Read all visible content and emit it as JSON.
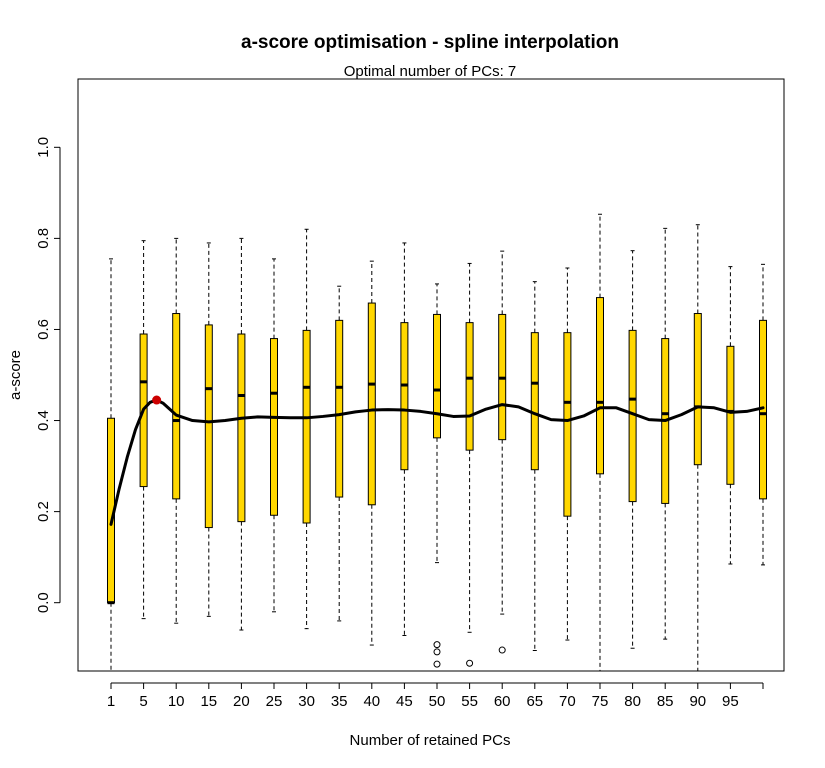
{
  "chart_data": {
    "type": "boxplot",
    "title": "a-score optimisation - spline interpolation",
    "subtitle": "Optimal number of PCs: 7",
    "xlabel": "Number of retained PCs",
    "ylabel": "a-score",
    "ylim": [
      -0.15,
      1.15
    ],
    "yticks": [
      0.0,
      0.2,
      0.4,
      0.6,
      0.8,
      1.0
    ],
    "ytick_labels": [
      "0.0",
      "0.2",
      "0.4",
      "0.6",
      "0.8",
      "1.0"
    ],
    "box_color": "#FFD700",
    "box_border_color": "#000000",
    "spline_color": "#000000",
    "optimum_color": "#CC0000",
    "optimum": {
      "x": 7,
      "y": 0.445
    },
    "categories": [
      1,
      5,
      10,
      15,
      20,
      25,
      30,
      35,
      40,
      45,
      50,
      55,
      60,
      65,
      70,
      75,
      80,
      85,
      90,
      95,
      100
    ],
    "category_labels": [
      "1",
      "5",
      "10",
      "15",
      "20",
      "25",
      "30",
      "35",
      "40",
      "45",
      "50",
      "55",
      "60",
      "65",
      "70",
      "75",
      "80",
      "85",
      "90",
      "95",
      ""
    ],
    "boxes": [
      {
        "x": 1,
        "lower_whisker": -0.15,
        "q1": 0.0,
        "median": 0.0,
        "q3": 0.405,
        "upper_whisker": 0.755,
        "outliers": []
      },
      {
        "x": 5,
        "lower_whisker": -0.035,
        "q1": 0.255,
        "median": 0.485,
        "q3": 0.59,
        "upper_whisker": 0.795,
        "outliers": []
      },
      {
        "x": 10,
        "lower_whisker": -0.045,
        "q1": 0.228,
        "median": 0.4,
        "q3": 0.635,
        "upper_whisker": 0.8,
        "outliers": []
      },
      {
        "x": 15,
        "lower_whisker": -0.03,
        "q1": 0.165,
        "median": 0.47,
        "q3": 0.61,
        "upper_whisker": 0.79,
        "outliers": []
      },
      {
        "x": 20,
        "lower_whisker": -0.06,
        "q1": 0.178,
        "median": 0.455,
        "q3": 0.59,
        "upper_whisker": 0.8,
        "outliers": []
      },
      {
        "x": 25,
        "lower_whisker": -0.02,
        "q1": 0.192,
        "median": 0.46,
        "q3": 0.58,
        "upper_whisker": 0.755,
        "outliers": []
      },
      {
        "x": 30,
        "lower_whisker": -0.057,
        "q1": 0.175,
        "median": 0.473,
        "q3": 0.598,
        "upper_whisker": 0.82,
        "outliers": []
      },
      {
        "x": 35,
        "lower_whisker": -0.04,
        "q1": 0.232,
        "median": 0.473,
        "q3": 0.62,
        "upper_whisker": 0.695,
        "outliers": []
      },
      {
        "x": 40,
        "lower_whisker": -0.093,
        "q1": 0.215,
        "median": 0.48,
        "q3": 0.658,
        "upper_whisker": 0.75,
        "outliers": []
      },
      {
        "x": 45,
        "lower_whisker": -0.072,
        "q1": 0.292,
        "median": 0.478,
        "q3": 0.615,
        "upper_whisker": 0.79,
        "outliers": []
      },
      {
        "x": 50,
        "lower_whisker": 0.088,
        "q1": 0.362,
        "median": 0.467,
        "q3": 0.633,
        "upper_whisker": 0.7,
        "outliers": [
          -0.092,
          -0.108,
          -0.135
        ]
      },
      {
        "x": 55,
        "lower_whisker": -0.065,
        "q1": 0.335,
        "median": 0.493,
        "q3": 0.615,
        "upper_whisker": 0.745,
        "outliers": [
          -0.133
        ]
      },
      {
        "x": 60,
        "lower_whisker": -0.025,
        "q1": 0.358,
        "median": 0.493,
        "q3": 0.633,
        "upper_whisker": 0.772,
        "outliers": [
          -0.104
        ]
      },
      {
        "x": 65,
        "lower_whisker": -0.105,
        "q1": 0.292,
        "median": 0.482,
        "q3": 0.593,
        "upper_whisker": 0.705,
        "outliers": []
      },
      {
        "x": 70,
        "lower_whisker": -0.082,
        "q1": 0.19,
        "median": 0.44,
        "q3": 0.593,
        "upper_whisker": 0.735,
        "outliers": []
      },
      {
        "x": 75,
        "lower_whisker": -0.15,
        "q1": 0.283,
        "median": 0.44,
        "q3": 0.67,
        "upper_whisker": 0.853,
        "outliers": []
      },
      {
        "x": 80,
        "lower_whisker": -0.1,
        "q1": 0.222,
        "median": 0.447,
        "q3": 0.598,
        "upper_whisker": 0.773,
        "outliers": []
      },
      {
        "x": 85,
        "lower_whisker": -0.08,
        "q1": 0.218,
        "median": 0.415,
        "q3": 0.58,
        "upper_whisker": 0.822,
        "outliers": []
      },
      {
        "x": 90,
        "lower_whisker": -0.15,
        "q1": 0.303,
        "median": 0.43,
        "q3": 0.635,
        "upper_whisker": 0.83,
        "outliers": []
      },
      {
        "x": 95,
        "lower_whisker": 0.085,
        "q1": 0.26,
        "median": 0.42,
        "q3": 0.563,
        "upper_whisker": 0.738,
        "outliers": []
      },
      {
        "x": 100,
        "lower_whisker": 0.083,
        "q1": 0.228,
        "median": 0.415,
        "q3": 0.62,
        "upper_whisker": 0.743,
        "outliers": []
      }
    ],
    "spline": {
      "x": [
        1,
        2,
        3,
        4,
        5,
        6,
        7,
        8,
        9,
        10,
        12.5,
        15,
        17.5,
        20,
        22.5,
        25,
        27.5,
        30,
        32.5,
        35,
        37.5,
        40,
        42.5,
        45,
        47.5,
        50,
        52.5,
        55,
        57.5,
        60,
        62.5,
        65,
        67.5,
        70,
        72.5,
        75,
        77.5,
        80,
        82.5,
        85,
        87.5,
        90,
        92.5,
        95,
        97.5,
        100
      ],
      "y": [
        0.172,
        0.25,
        0.32,
        0.38,
        0.425,
        0.44,
        0.445,
        0.438,
        0.425,
        0.412,
        0.4,
        0.397,
        0.4,
        0.405,
        0.408,
        0.407,
        0.406,
        0.406,
        0.409,
        0.413,
        0.419,
        0.423,
        0.424,
        0.423,
        0.42,
        0.415,
        0.409,
        0.41,
        0.425,
        0.435,
        0.43,
        0.415,
        0.402,
        0.4,
        0.41,
        0.428,
        0.428,
        0.415,
        0.402,
        0.4,
        0.413,
        0.43,
        0.428,
        0.418,
        0.42,
        0.428
      ]
    }
  }
}
